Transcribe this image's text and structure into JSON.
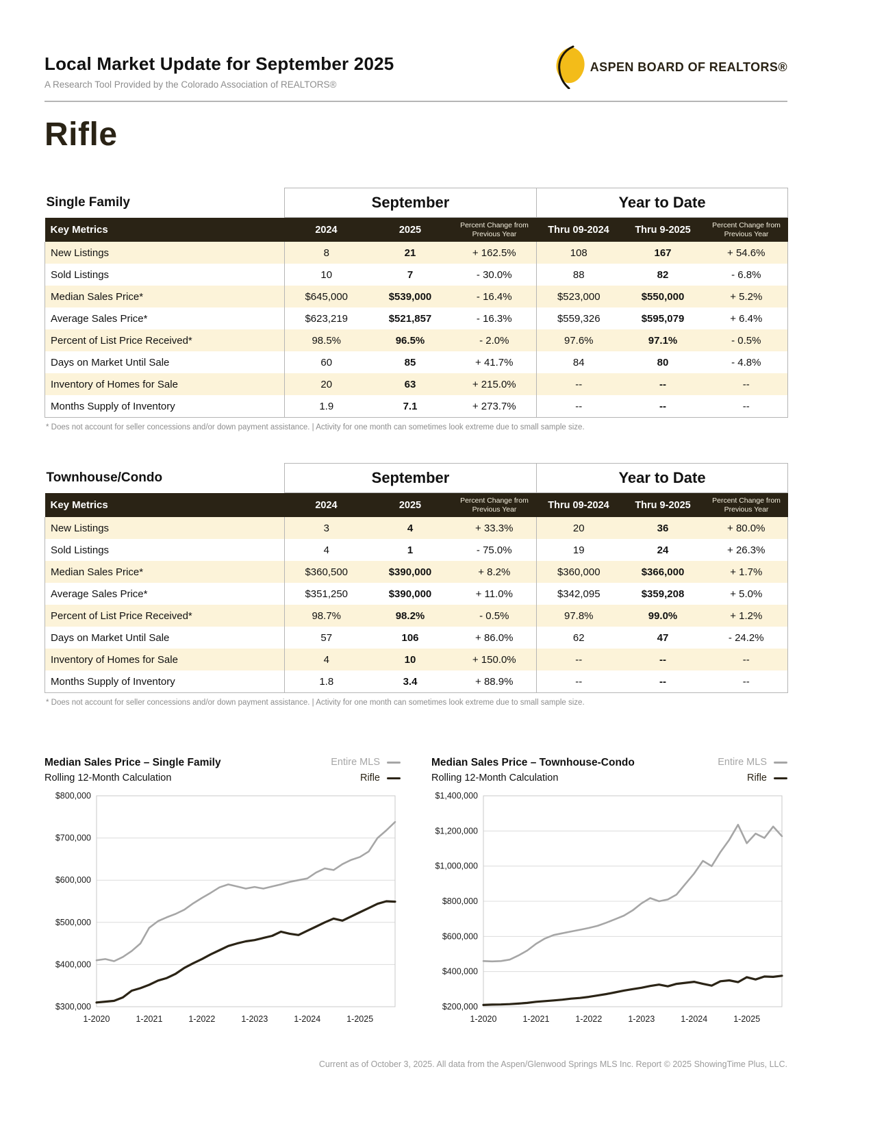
{
  "page": {
    "title": "Local Market Update for September 2025",
    "subtitle": "A Research Tool Provided by the Colorado Association of REALTORS®",
    "logo_text": "ASPEN BOARD OF REALTORS®",
    "area_name": "Rifle",
    "footer": "Current as of October 3, 2025. All data from the Aspen/Glenwood Springs MLS Inc. Report © 2025 ShowingTime Plus, LLC."
  },
  "colors": {
    "accent_gold": "#f3bc19",
    "header_dark": "#2a2315",
    "row_cream": "#fcf3d9",
    "mls_line": "#a6a6a6",
    "rifle_line": "#2b2416"
  },
  "tables": [
    {
      "section_label": "Single Family",
      "month_header": "September",
      "ytd_header": "Year to Date",
      "key_metrics_label": "Key Metrics",
      "col_headers": [
        "2024",
        "2025",
        "Percent Change from Previous Year",
        "Thru 09-2024",
        "Thru 9-2025",
        "Percent Change from Previous Year"
      ],
      "rows": [
        [
          "New Listings",
          "8",
          "21",
          "+ 162.5%",
          "108",
          "167",
          "+ 54.6%"
        ],
        [
          "Sold Listings",
          "10",
          "7",
          "- 30.0%",
          "88",
          "82",
          "- 6.8%"
        ],
        [
          "Median Sales Price*",
          "$645,000",
          "$539,000",
          "- 16.4%",
          "$523,000",
          "$550,000",
          "+ 5.2%"
        ],
        [
          "Average Sales Price*",
          "$623,219",
          "$521,857",
          "- 16.3%",
          "$559,326",
          "$595,079",
          "+ 6.4%"
        ],
        [
          "Percent of List Price Received*",
          "98.5%",
          "96.5%",
          "- 2.0%",
          "97.6%",
          "97.1%",
          "- 0.5%"
        ],
        [
          "Days on Market Until Sale",
          "60",
          "85",
          "+ 41.7%",
          "84",
          "80",
          "- 4.8%"
        ],
        [
          "Inventory of Homes for Sale",
          "20",
          "63",
          "+ 215.0%",
          "--",
          "--",
          "--"
        ],
        [
          "Months Supply of Inventory",
          "1.9",
          "7.1",
          "+ 273.7%",
          "--",
          "--",
          "--"
        ]
      ],
      "footnote": "* Does not account for seller concessions and/or down payment assistance.  |  Activity for one month can sometimes look extreme due to small sample size."
    },
    {
      "section_label": "Townhouse/Condo",
      "month_header": "September",
      "ytd_header": "Year to Date",
      "key_metrics_label": "Key Metrics",
      "col_headers": [
        "2024",
        "2025",
        "Percent Change from Previous Year",
        "Thru 09-2024",
        "Thru 9-2025",
        "Percent Change from Previous Year"
      ],
      "rows": [
        [
          "New Listings",
          "3",
          "4",
          "+ 33.3%",
          "20",
          "36",
          "+ 80.0%"
        ],
        [
          "Sold Listings",
          "4",
          "1",
          "- 75.0%",
          "19",
          "24",
          "+ 26.3%"
        ],
        [
          "Median Sales Price*",
          "$360,500",
          "$390,000",
          "+ 8.2%",
          "$360,000",
          "$366,000",
          "+ 1.7%"
        ],
        [
          "Average Sales Price*",
          "$351,250",
          "$390,000",
          "+ 11.0%",
          "$342,095",
          "$359,208",
          "+ 5.0%"
        ],
        [
          "Percent of List Price Received*",
          "98.7%",
          "98.2%",
          "- 0.5%",
          "97.8%",
          "99.0%",
          "+ 1.2%"
        ],
        [
          "Days on Market Until Sale",
          "57",
          "106",
          "+ 86.0%",
          "62",
          "47",
          "- 24.2%"
        ],
        [
          "Inventory of Homes for Sale",
          "4",
          "10",
          "+ 150.0%",
          "--",
          "--",
          "--"
        ],
        [
          "Months Supply of Inventory",
          "1.8",
          "3.4",
          "+ 88.9%",
          "--",
          "--",
          "--"
        ]
      ],
      "footnote": "* Does not account for seller concessions and/or down payment assistance.  |  Activity for one month can sometimes look extreme due to small sample size."
    }
  ],
  "chart_data": [
    {
      "type": "line",
      "title": "Median Sales Price – Single Family",
      "subtitle": "Rolling 12-Month Calculation",
      "xlabel": "",
      "ylabel": "",
      "grid": "horizontal",
      "legend_position": "top-right",
      "ylim": [
        300000,
        800000
      ],
      "yticks": [
        {
          "v": 300000,
          "label": "$300,000"
        },
        {
          "v": 400000,
          "label": "$400,000"
        },
        {
          "v": 500000,
          "label": "$500,000"
        },
        {
          "v": 600000,
          "label": "$600,000"
        },
        {
          "v": 700000,
          "label": "$700,000"
        },
        {
          "v": 800000,
          "label": "$800,000"
        }
      ],
      "x_months_max": 68,
      "months": [
        0,
        2,
        4,
        6,
        8,
        10,
        12,
        14,
        16,
        18,
        20,
        22,
        24,
        26,
        28,
        30,
        32,
        34,
        36,
        38,
        40,
        42,
        44,
        46,
        48,
        50,
        52,
        54,
        56,
        58,
        60,
        62,
        64,
        66,
        68
      ],
      "xticks": [
        {
          "m": 0,
          "label": "1-2020"
        },
        {
          "m": 12,
          "label": "1-2021"
        },
        {
          "m": 24,
          "label": "1-2022"
        },
        {
          "m": 36,
          "label": "1-2023"
        },
        {
          "m": 48,
          "label": "1-2024"
        },
        {
          "m": 60,
          "label": "1-2025"
        }
      ],
      "series": [
        {
          "name": "Entire MLS",
          "color": "#a6a6a6",
          "values": [
            410000,
            413000,
            408000,
            418000,
            432000,
            450000,
            487000,
            503000,
            512000,
            520000,
            530000,
            545000,
            558000,
            570000,
            583000,
            590000,
            585000,
            580000,
            584000,
            580000,
            585000,
            590000,
            596000,
            600000,
            604000,
            618000,
            628000,
            624000,
            638000,
            648000,
            655000,
            668000,
            700000,
            718000,
            738000
          ]
        },
        {
          "name": "Rifle",
          "color": "#2b2416",
          "values": [
            310000,
            312000,
            314000,
            322000,
            338000,
            344000,
            352000,
            362000,
            368000,
            378000,
            392000,
            403000,
            413000,
            424000,
            434000,
            444000,
            450000,
            455000,
            458000,
            463000,
            468000,
            478000,
            473000,
            470000,
            480000,
            490000,
            500000,
            509000,
            504000,
            514000,
            524000,
            534000,
            544000,
            550000,
            549000
          ]
        }
      ]
    },
    {
      "type": "line",
      "title": "Median Sales Price – Townhouse-Condo",
      "subtitle": "Rolling 12-Month Calculation",
      "xlabel": "",
      "ylabel": "",
      "grid": "horizontal",
      "legend_position": "top-right",
      "ylim": [
        200000,
        1400000
      ],
      "yticks": [
        {
          "v": 200000,
          "label": "$200,000"
        },
        {
          "v": 400000,
          "label": "$400,000"
        },
        {
          "v": 600000,
          "label": "$600,000"
        },
        {
          "v": 800000,
          "label": "$800,000"
        },
        {
          "v": 1000000,
          "label": "$1,000,000"
        },
        {
          "v": 1200000,
          "label": "$1,200,000"
        },
        {
          "v": 1400000,
          "label": "$1,400,000"
        }
      ],
      "x_months_max": 68,
      "months": [
        0,
        2,
        4,
        6,
        8,
        10,
        12,
        14,
        16,
        18,
        20,
        22,
        24,
        26,
        28,
        30,
        32,
        34,
        36,
        38,
        40,
        42,
        44,
        46,
        48,
        50,
        52,
        54,
        56,
        58,
        60,
        62,
        64,
        66,
        68
      ],
      "xticks": [
        {
          "m": 0,
          "label": "1-2020"
        },
        {
          "m": 12,
          "label": "1-2021"
        },
        {
          "m": 24,
          "label": "1-2022"
        },
        {
          "m": 36,
          "label": "1-2023"
        },
        {
          "m": 48,
          "label": "1-2024"
        },
        {
          "m": 60,
          "label": "1-2025"
        }
      ],
      "series": [
        {
          "name": "Entire MLS",
          "color": "#a6a6a6",
          "values": [
            460000,
            458000,
            460000,
            468000,
            492000,
            520000,
            558000,
            588000,
            608000,
            618000,
            628000,
            638000,
            648000,
            660000,
            678000,
            698000,
            718000,
            748000,
            788000,
            818000,
            800000,
            810000,
            838000,
            898000,
            958000,
            1030000,
            1000000,
            1080000,
            1150000,
            1235000,
            1130000,
            1185000,
            1160000,
            1225000,
            1170000
          ]
        },
        {
          "name": "Rifle",
          "color": "#2b2416",
          "values": [
            210000,
            212000,
            213000,
            215000,
            218000,
            222000,
            228000,
            232000,
            236000,
            240000,
            246000,
            250000,
            256000,
            264000,
            272000,
            282000,
            292000,
            300000,
            308000,
            318000,
            326000,
            316000,
            330000,
            336000,
            342000,
            330000,
            320000,
            345000,
            350000,
            340000,
            368000,
            355000,
            372000,
            370000,
            376000
          ]
        }
      ]
    }
  ]
}
